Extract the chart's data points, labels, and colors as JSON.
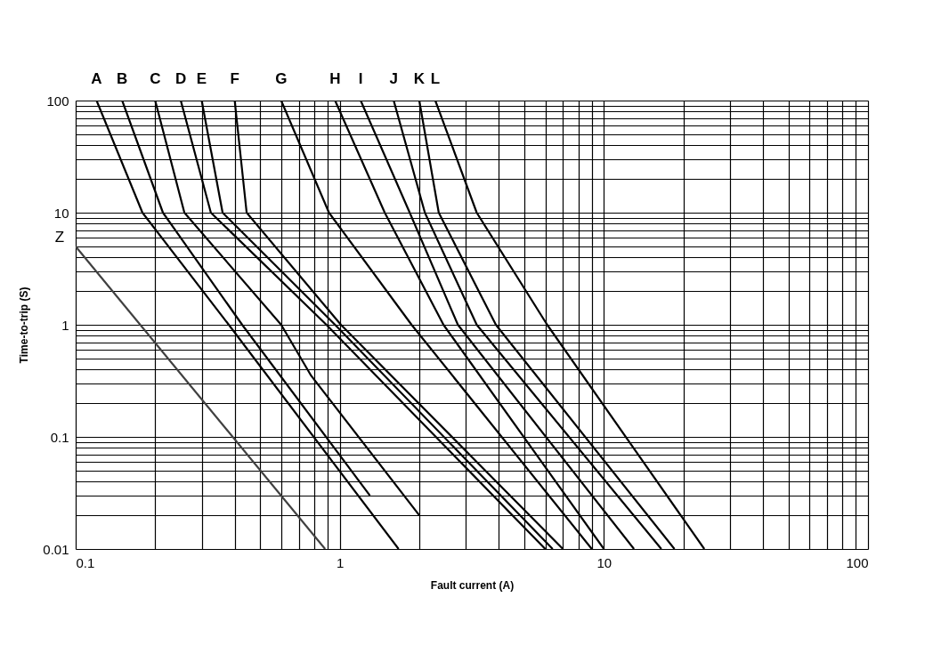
{
  "chart_data": {
    "type": "line",
    "xlabel": "Fault current (A)",
    "ylabel": "Time-to-trip (S)",
    "log": "xy",
    "grid": true,
    "legend": false,
    "marker": "none",
    "line_style": "solid",
    "xlim": [
      0.1,
      100
    ],
    "ylim": [
      0.01,
      100
    ],
    "xticks": [
      0.1,
      {
        "value": 0.2,
        "label": null
      },
      {
        "value": 0.3,
        "label": null
      },
      {
        "value": 0.4,
        "label": null
      },
      {
        "value": 0.5,
        "label": null
      },
      {
        "value": 0.6,
        "label": null
      },
      {
        "value": 0.7,
        "label": null
      },
      {
        "value": 0.8,
        "label": null
      },
      {
        "value": 0.9,
        "label": null
      },
      1,
      {
        "value": 2,
        "label": null
      },
      {
        "value": 3,
        "label": null
      },
      {
        "value": 4,
        "label": null
      },
      {
        "value": 5,
        "label": null
      },
      {
        "value": 6,
        "label": null
      },
      {
        "value": 7,
        "label": null
      },
      {
        "value": 8,
        "label": null
      },
      {
        "value": 9,
        "label": null
      },
      10,
      {
        "value": 20,
        "label": null
      },
      {
        "value": 30,
        "label": null
      },
      {
        "value": 40,
        "label": null
      },
      {
        "value": 50,
        "label": null
      },
      {
        "value": 60,
        "label": null
      },
      {
        "value": 70,
        "label": null
      },
      {
        "value": 80,
        "label": null
      },
      {
        "value": 90,
        "label": null
      },
      100
    ],
    "yticks": [
      0.01,
      {
        "value": 0.02,
        "label": null
      },
      {
        "value": 0.03,
        "label": null
      },
      {
        "value": 0.04,
        "label": null
      },
      {
        "value": 0.05,
        "label": null
      },
      {
        "value": 0.06,
        "label": null
      },
      {
        "value": 0.07,
        "label": null
      },
      {
        "value": 0.08,
        "label": null
      },
      {
        "value": 0.09,
        "label": null
      },
      0.1,
      {
        "value": 0.2,
        "label": null
      },
      {
        "value": 0.3,
        "label": null
      },
      {
        "value": 0.4,
        "label": null
      },
      {
        "value": 0.5,
        "label": null
      },
      {
        "value": 0.6,
        "label": null
      },
      {
        "value": 0.7,
        "label": null
      },
      {
        "value": 0.8,
        "label": null
      },
      {
        "value": 0.9,
        "label": null
      },
      1,
      {
        "value": 2,
        "label": null
      },
      {
        "value": 3,
        "label": null
      },
      {
        "value": 4,
        "label": null
      },
      {
        "value": 5,
        "label": null
      },
      {
        "value": 6,
        "label": null
      },
      {
        "value": 7,
        "label": null
      },
      {
        "value": 8,
        "label": null
      },
      {
        "value": 9,
        "label": null
      },
      10,
      {
        "value": 20,
        "label": null
      },
      {
        "value": 30,
        "label": null
      },
      {
        "value": 40,
        "label": null
      },
      {
        "value": 50,
        "label": null
      },
      {
        "value": 60,
        "label": null
      },
      {
        "value": 70,
        "label": null
      },
      {
        "value": 80,
        "label": null
      },
      {
        "value": 90,
        "label": null
      },
      100
    ],
    "series": [
      {
        "name": "A",
        "color": "#000000",
        "x": [
          0.12,
          0.179,
          0.38,
          1.67
        ],
        "values": [
          100,
          10,
          1,
          0.01
        ]
      },
      {
        "name": "B",
        "color": "#000000",
        "x": [
          0.15,
          0.214,
          0.427,
          1.3
        ],
        "values": [
          100,
          10,
          1,
          0.03
        ]
      },
      {
        "name": "C",
        "color": "#000000",
        "x": [
          0.2,
          0.258,
          0.6,
          0.78,
          2
        ],
        "values": [
          100,
          10,
          1,
          0.35,
          0.02
        ]
      },
      {
        "name": "D",
        "color": "#000000",
        "x": [
          0.25,
          0.325,
          0.89,
          6
        ],
        "values": [
          100,
          10,
          1,
          0.01
        ]
      },
      {
        "name": "E",
        "color": "#000000",
        "x": [
          0.3,
          0.36,
          0.96,
          6.4
        ],
        "values": [
          100,
          10,
          1,
          0.01
        ]
      },
      {
        "name": "F",
        "color": "#000000",
        "x": [
          0.4,
          0.444,
          1.01,
          7
        ],
        "values": [
          100,
          10,
          1,
          0.01
        ]
      },
      {
        "name": "G",
        "color": "#000000",
        "x": [
          0.6,
          0.91,
          1.87,
          9
        ],
        "values": [
          100,
          10,
          1,
          0.01
        ]
      },
      {
        "name": "H",
        "color": "#000000",
        "x": [
          0.96,
          1.48,
          2.47,
          10
        ],
        "values": [
          100,
          10,
          1,
          0.01
        ]
      },
      {
        "name": "I",
        "color": "#000000",
        "x": [
          1.2,
          1.84,
          2.8,
          13
        ],
        "values": [
          100,
          10,
          1,
          0.01
        ]
      },
      {
        "name": "J",
        "color": "#000000",
        "x": [
          1.6,
          2.1,
          3.3,
          16.5
        ],
        "values": [
          100,
          10,
          1,
          0.01
        ]
      },
      {
        "name": "K",
        "color": "#000000",
        "x": [
          2,
          2.37,
          3.9,
          18.5
        ],
        "values": [
          100,
          10,
          1,
          0.01
        ]
      },
      {
        "name": "L",
        "color": "#000000",
        "x": [
          2.3,
          3.3,
          6.1,
          24
        ],
        "values": [
          100,
          10,
          1,
          0.01
        ]
      },
      {
        "name": "Z",
        "color": "#404040",
        "x": [
          0.1,
          0.88
        ],
        "values": [
          5,
          0.01
        ]
      }
    ]
  }
}
